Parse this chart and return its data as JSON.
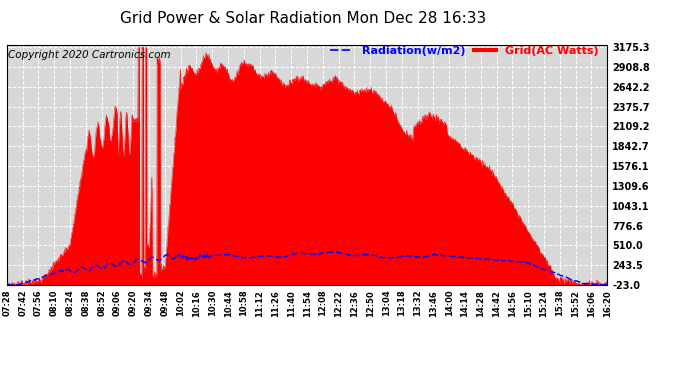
{
  "title": "Grid Power & Solar Radiation Mon Dec 28 16:33",
  "copyright": "Copyright 2020 Cartronics.com",
  "legend_radiation": "Radiation(w/m2)",
  "legend_grid": "Grid(AC Watts)",
  "ymin": -23.0,
  "ymax": 3175.3,
  "yticks": [
    3175.3,
    2908.8,
    2642.2,
    2375.7,
    2109.2,
    1842.7,
    1576.1,
    1309.6,
    1043.1,
    776.6,
    510.0,
    243.5,
    -23.0
  ],
  "background_color": "#ffffff",
  "plot_bg_color": "#d8d8d8",
  "grid_color": "#ffffff",
  "red_fill_color": "#ff0000",
  "blue_line_color": "#0000ff",
  "title_fontsize": 11,
  "copyright_fontsize": 7.5,
  "legend_fontsize": 8,
  "time_labels": [
    "07:28",
    "07:42",
    "07:56",
    "08:10",
    "08:24",
    "08:38",
    "08:52",
    "09:06",
    "09:20",
    "09:34",
    "09:48",
    "10:02",
    "10:16",
    "10:30",
    "10:44",
    "10:58",
    "11:12",
    "11:26",
    "11:40",
    "11:54",
    "12:08",
    "12:22",
    "12:36",
    "12:50",
    "13:04",
    "13:18",
    "13:32",
    "13:46",
    "14:00",
    "14:14",
    "14:28",
    "14:42",
    "14:56",
    "15:10",
    "15:24",
    "15:38",
    "15:52",
    "16:06",
    "16:20"
  ],
  "n_points": 2000,
  "t_total": 532
}
